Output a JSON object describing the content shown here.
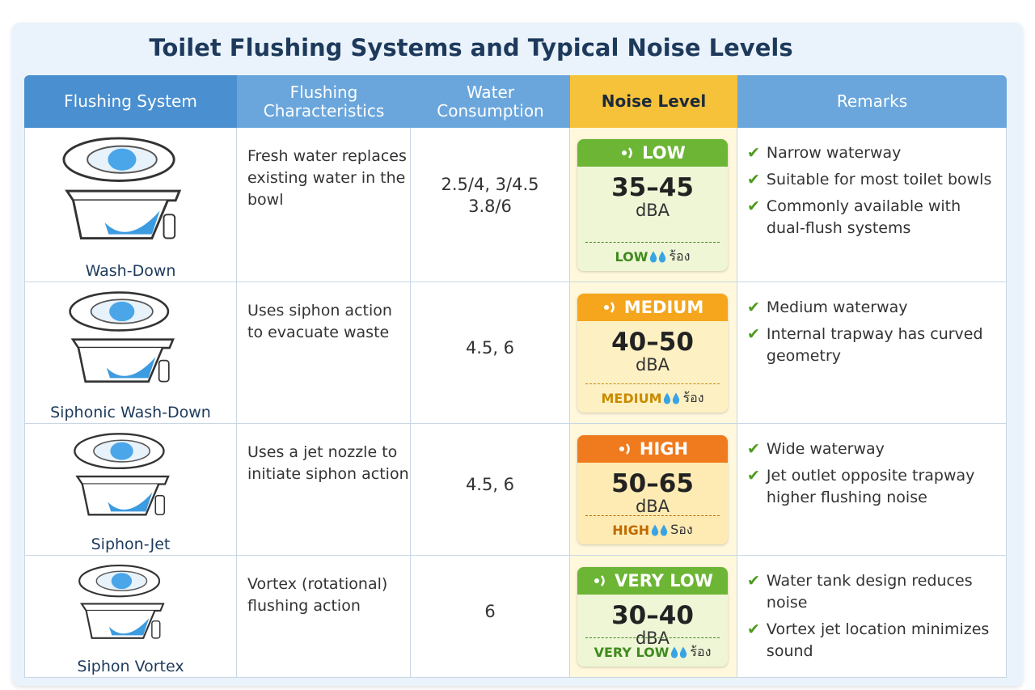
{
  "title": "Toilet Flushing Systems and Typical Noise Levels",
  "table": {
    "headers": [
      "Flushing System",
      "Flushing Characteristics",
      "Water Consumption",
      "Noise Level",
      "Remarks"
    ],
    "rows": [
      {
        "system": "Wash-Down",
        "characteristics": "Fresh water replaces existing water in the bowl",
        "water": [
          "2.5/4, 3/4.5",
          "3.8/6"
        ],
        "noise": {
          "level": "LOW",
          "range": "35–45",
          "unit": "dBA",
          "footer": "LOW",
          "suffix": "ร้อง",
          "color": "#6cb535",
          "body": "#eef6d6",
          "text": "#3f8a1c"
        },
        "remarks": [
          "Narrow waterway",
          "Suitable for most toilet bowls",
          "Commonly available with dual-flush systems"
        ]
      },
      {
        "system": "Siphonic Wash-Down",
        "characteristics": "Uses siphon action to evacuate waste",
        "water": [
          "4.5, 6"
        ],
        "noise": {
          "level": "MEDIUM",
          "range": "40–50",
          "unit": "dBA",
          "footer": "MEDIUM",
          "suffix": "ร้อง",
          "color": "#f5a61c",
          "body": "#fdf1c4",
          "text": "#c98a00"
        },
        "remarks": [
          "Medium waterway",
          "Internal trapway has curved geometry"
        ]
      },
      {
        "system": "Siphon-Jet",
        "characteristics": "Uses a jet nozzle to initiate siphon action",
        "water": [
          "4.5, 6"
        ],
        "noise": {
          "level": "HIGH",
          "range": "50–65",
          "unit": "dBA",
          "footer": "HIGH",
          "suffix": "Sอง",
          "color": "#f07b1e",
          "body": "#fdebb3",
          "text": "#c06a00"
        },
        "remarks": [
          "Wide waterway",
          "Jet outlet opposite trapway higher flushing noise"
        ]
      },
      {
        "system": "Siphon Vortex",
        "characteristics": "Vortex (rotational) flushing action",
        "water": [
          "6"
        ],
        "noise": {
          "level": "VERY LOW",
          "range": "30–40",
          "unit": "dBA",
          "footer": "VERY LOW",
          "suffix": "ร้อง",
          "color": "#6cb535",
          "body": "#eef6d6",
          "text": "#3f8a1c"
        },
        "remarks": [
          "Water tank design reduces noise",
          "Vortex jet location minimizes sound"
        ]
      }
    ]
  }
}
